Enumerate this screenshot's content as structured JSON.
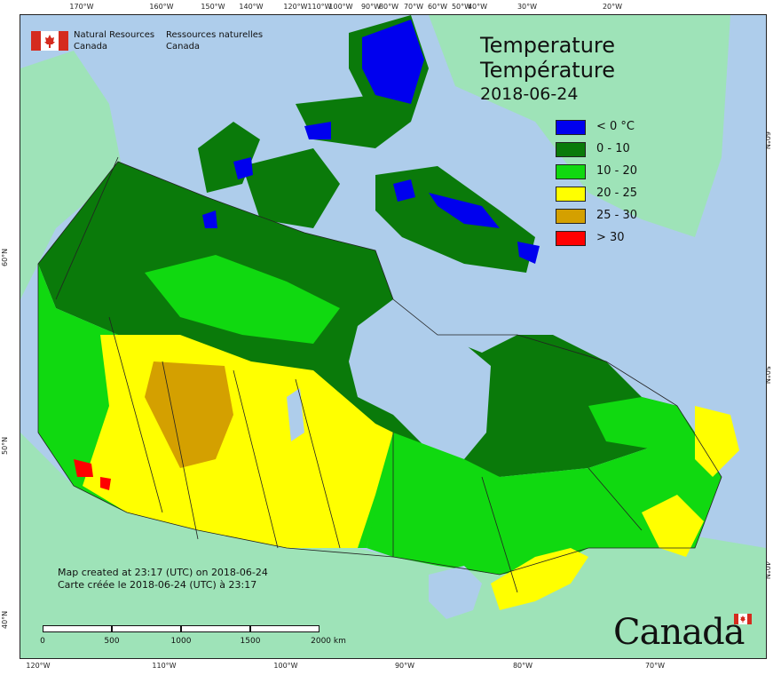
{
  "agency": {
    "name_en_line1": "Natural Resources",
    "name_en_line2": "Canada",
    "name_fr_line1": "Ressources naturelles",
    "name_fr_line2": "Canada"
  },
  "title": {
    "en": "Temperature",
    "fr": "Température",
    "date": "2018-06-24"
  },
  "legend": [
    {
      "label": "< 0 °C",
      "color": "#0000ee"
    },
    {
      "label": "0 - 10",
      "color": "#0a7a0a"
    },
    {
      "label": "10 - 20",
      "color": "#10d910"
    },
    {
      "label": "20 - 25",
      "color": "#ffff00"
    },
    {
      "label": "25 - 30",
      "color": "#d4a000"
    },
    {
      "label": "> 30",
      "color": "#ff0000"
    }
  ],
  "credit": {
    "en": "Map created at 23:17 (UTC) on 2018-06-24",
    "fr": "Carte créée le 2018-06-24 (UTC) à 23:17"
  },
  "scale": {
    "labels": [
      "0",
      "500",
      "1000",
      "1500",
      "2000 km"
    ]
  },
  "wordmark": "Canada",
  "graticule": {
    "top": [
      "170°W",
      "160°W",
      "150°W",
      "140°W",
      "120°W",
      "110°W",
      "100°W",
      "90°W",
      "80°W",
      "70°W",
      "60°W",
      "50°W",
      "40°W",
      "30°W",
      "20°W"
    ],
    "bottom": [
      "120°W",
      "110°W",
      "100°W",
      "90°W",
      "80°W",
      "70°W"
    ],
    "left": [
      "60°N",
      "50°N",
      "40°N"
    ],
    "right": [
      "60°N",
      "50°N",
      "40°N"
    ]
  },
  "colors": {
    "water": "#aecdeb",
    "foreign_land": "#9ee3b8",
    "border": "#222222"
  }
}
